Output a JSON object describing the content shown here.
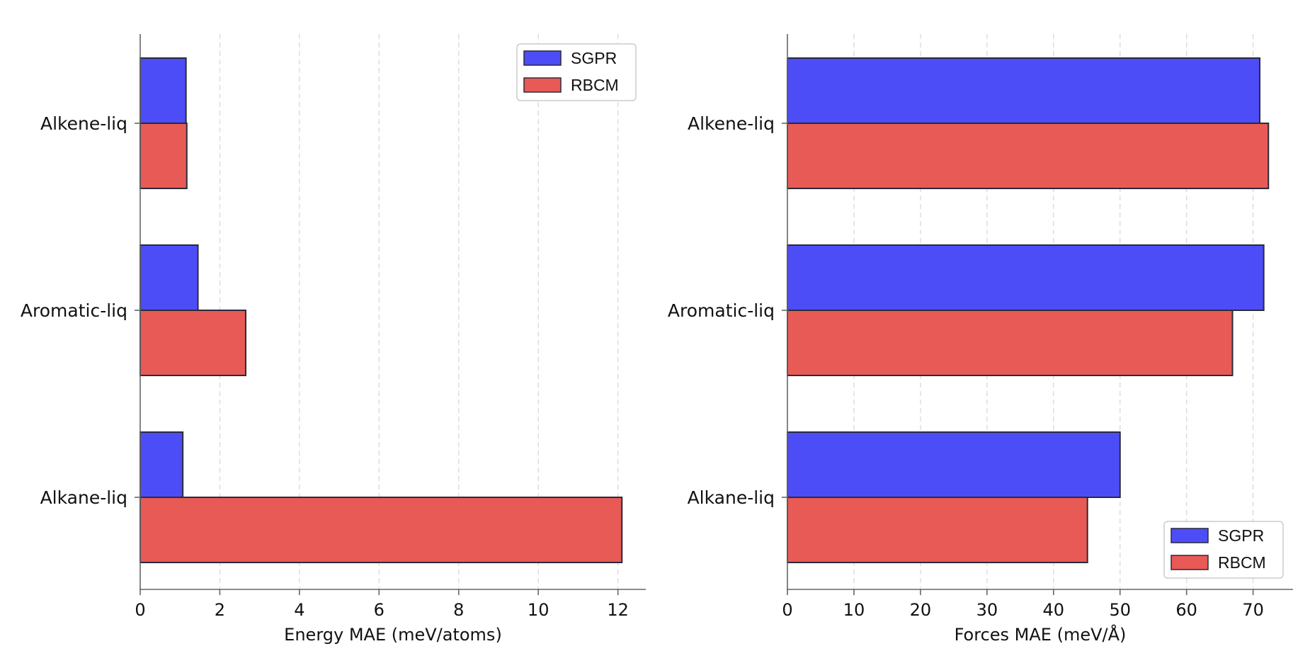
{
  "colors": {
    "sgpr": "#4d4df7",
    "rbcm": "#e85a55",
    "bar_edge": "#2a2a3a",
    "axis": "#666666",
    "grid": "#d9d9d9"
  },
  "chart_data": [
    {
      "type": "bar",
      "orientation": "horizontal",
      "categories": [
        "Alkene-liq",
        "Aromatic-liq",
        "Alkane-liq"
      ],
      "series": [
        {
          "name": "SGPR",
          "values": [
            1.15,
            1.45,
            1.07
          ]
        },
        {
          "name": "RBCM",
          "values": [
            1.17,
            2.65,
            12.1
          ]
        }
      ],
      "title": "",
      "xlabel": "Energy MAE (meV/atoms)",
      "ylabel": "",
      "xlim": [
        0,
        12.7
      ],
      "xticks": [
        "0",
        "2",
        "4",
        "6",
        "8",
        "10",
        "12"
      ],
      "grid": "vertical dashed",
      "legend": "top-right"
    },
    {
      "type": "bar",
      "orientation": "horizontal",
      "categories": [
        "Alkene-liq",
        "Aromatic-liq",
        "Alkane-liq"
      ],
      "series": [
        {
          "name": "SGPR",
          "values": [
            71.0,
            71.6,
            50.0
          ]
        },
        {
          "name": "RBCM",
          "values": [
            72.3,
            66.9,
            45.1
          ]
        }
      ],
      "title": "",
      "xlabel": "Forces MAE (meV/Å)",
      "ylabel": "",
      "xlim": [
        0,
        76
      ],
      "xticks": [
        "0",
        "10",
        "20",
        "30",
        "40",
        "50",
        "60",
        "70"
      ],
      "grid": "vertical dashed",
      "legend": "bottom-right"
    }
  ]
}
